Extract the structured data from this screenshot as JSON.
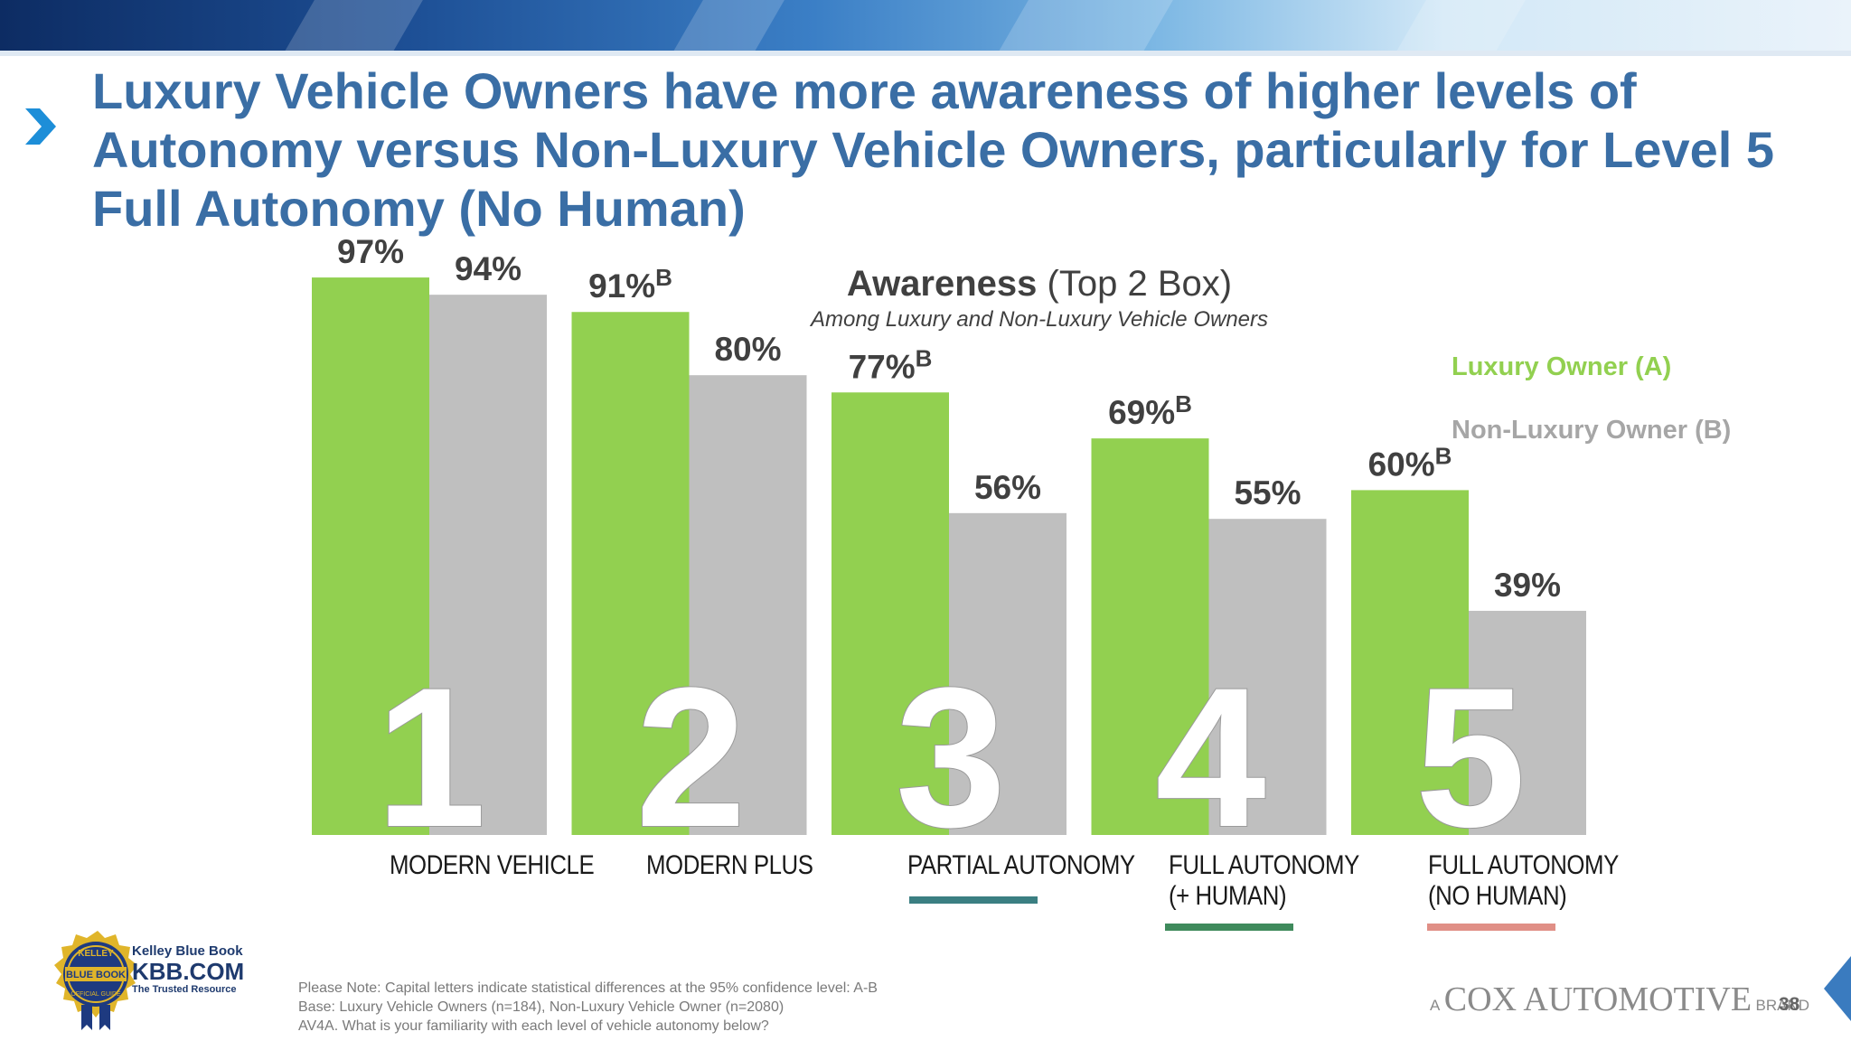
{
  "header": {
    "title": "Luxury Vehicle Owners have more awareness of higher levels of Autonomy versus Non-Luxury Vehicle Owners, particularly for Level 5 Full Autonomy (No Human)"
  },
  "chart_data": {
    "type": "bar",
    "title_bold": "Awareness",
    "title_rest": "(Top 2 Box)",
    "subtitle": "Among Luxury and Non-Luxury Vehicle Owners",
    "xlabel": "",
    "ylabel": "",
    "ylim": [
      0,
      100
    ],
    "grid": false,
    "legend_position": "top-right",
    "categories": [
      "MODERN VEHICLE",
      "MODERN PLUS",
      "PARTIAL AUTONOMY",
      "FULL AUTONOMY (+ HUMAN)",
      "FULL AUTONOMY (NO HUMAN)"
    ],
    "category_numbers": [
      "1",
      "2",
      "3",
      "4",
      "5"
    ],
    "series": [
      {
        "name": "Luxury Owner (A)",
        "color": "#92d050",
        "values": [
          97,
          91,
          77,
          69,
          60
        ],
        "labels": [
          "97%",
          "91%",
          "77%",
          "69%",
          "60%"
        ],
        "sig": [
          "",
          "B",
          "B",
          "B",
          "B"
        ]
      },
      {
        "name": "Non-Luxury Owner (B)",
        "color": "#bfbfbf",
        "values": [
          94,
          80,
          56,
          55,
          39
        ],
        "labels": [
          "94%",
          "80%",
          "56%",
          "55%",
          "39%"
        ],
        "sig": [
          "",
          "",
          "",
          "",
          ""
        ]
      }
    ],
    "category_underline_colors": [
      "",
      "",
      "#3b7f82",
      "#3f8a5c",
      "#e08f86"
    ]
  },
  "labels": {
    "cat1_line1": "MODERN VEHICLE",
    "cat2_line1": "MODERN PLUS",
    "cat3_line1": "PARTIAL AUTONOMY",
    "cat4_line1": "FULL AUTONOMY",
    "cat4_line2": "(+ HUMAN)",
    "cat5_line1": "FULL AUTONOMY",
    "cat5_line2": "(NO HUMAN)"
  },
  "footnote": {
    "line1": "Please Note: Capital letters indicate statistical differences at the 95% confidence level: A-B",
    "line2": "Base: Luxury Vehicle Owners (n=184), Non-Luxury Vehicle Owner (n=2080)",
    "line3": "AV4A. What is your familiarity with each level of vehicle autonomy below?"
  },
  "branding": {
    "kbb_line1": "Kelley Blue Book",
    "kbb_line2": "KBB.COM",
    "kbb_line3": "The Trusted Resource",
    "badge_top": "KELLEY",
    "badge_mid": "BLUE BOOK",
    "badge_bottom": "OFFICIAL GUIDE",
    "cox_a": "A",
    "cox_name": "COX AUTOMOTIVE",
    "cox_brand": "BRAND",
    "page_number": "38"
  },
  "colors": {
    "title": "#3a6ea5",
    "luxury": "#92d050",
    "nonluxury": "#bfbfbf"
  },
  "icons": [
    "chevron-right-icon",
    "kbb-badge-icon",
    "corner-arrow-icon"
  ]
}
